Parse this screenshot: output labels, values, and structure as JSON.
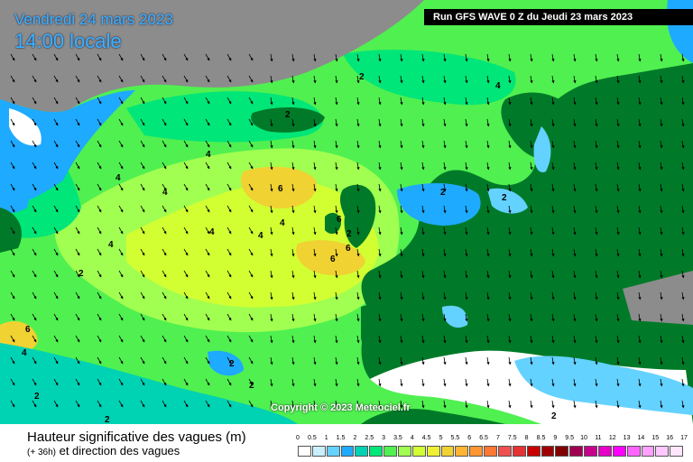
{
  "header": {
    "date_line": "Vendredi 24 mars 2023",
    "time_line": "14:00 locale",
    "run_info": "Run GFS WAVE 0 Z du Jeudi 23 mars 2023"
  },
  "footer": {
    "title": "Hauteur significative des vagues (m)",
    "offset": "(+ 36h)",
    "subtitle": "et direction des vagues",
    "copyright": "Copyright © 2023 Meteociel.fr"
  },
  "legend": {
    "labels": [
      "0",
      "0.5",
      "1",
      "1.5",
      "2",
      "2.5",
      "3",
      "3.5",
      "4",
      "4.5",
      "5",
      "5.5",
      "6",
      "6.5",
      "7",
      "7.5",
      "8",
      "8.5",
      "9",
      "9.5",
      "10",
      "11",
      "12",
      "13",
      "14",
      "15",
      "16",
      "17"
    ],
    "colors": [
      "#ffffff",
      "#c8f0ff",
      "#64d2ff",
      "#1eaaff",
      "#00d2b4",
      "#00e678",
      "#50f050",
      "#a0ff50",
      "#d2ff32",
      "#f0f032",
      "#f0d232",
      "#ffb432",
      "#ff9632",
      "#ff7832",
      "#f05050",
      "#e63232",
      "#c80000",
      "#a00000",
      "#800000",
      "#a00050",
      "#c8008c",
      "#e600c8",
      "#ff00ff",
      "#ff64ff",
      "#ffa0ff",
      "#ffc8ff",
      "#ffe6ff"
    ]
  },
  "map": {
    "contour_labels": [
      "2",
      "2",
      "2",
      "4",
      "4",
      "4",
      "4",
      "4",
      "4",
      "4",
      "6",
      "6",
      "6",
      "6",
      "6",
      "2",
      "2",
      "2",
      "2",
      "2",
      "2",
      "2",
      "4",
      "4",
      "2"
    ],
    "colors": {
      "sea_low": "#1eaaff",
      "sea_mid": "#00d2b4",
      "sea_green": "#50f050",
      "sea_yellow": "#d2ff32",
      "sea_orange": "#f0d232",
      "land_green": "#007a28",
      "land_grey": "#8c8c8c",
      "ice_white": "#ffffff"
    }
  }
}
